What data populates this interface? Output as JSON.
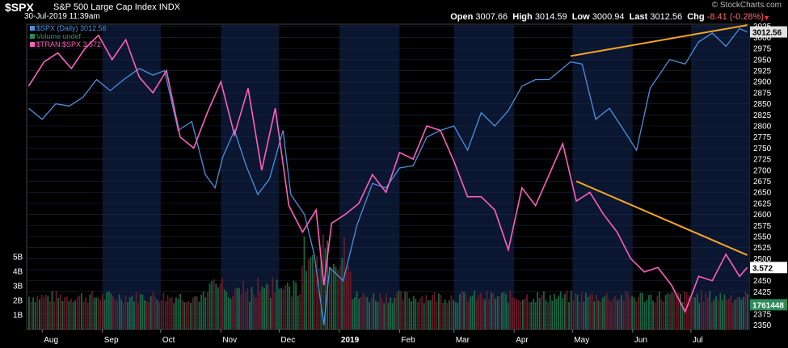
{
  "header": {
    "symbol": "$SPX",
    "name": "S&P 500 Large Cap Index",
    "exchange": "INDX",
    "date": "30-Jul-2019 11:39am",
    "brand": "© StockCharts.com",
    "open_label": "Open",
    "open": "3007.66",
    "high_label": "High",
    "high": "3014.59",
    "low_label": "Low",
    "low": "3000.94",
    "last_label": "Last",
    "last": "3012.56",
    "chg_label": "Chg",
    "chg": "-8.41 (-0.28%)",
    "chg_arrow": "▼"
  },
  "legend": [
    {
      "label": "$SPX (Daily) 3012.56",
      "color": "#4a90e2"
    },
    {
      "label": "Volume undef",
      "color": "#2e8b57"
    },
    {
      "label": "$TRAN:$SPX 3.572",
      "color": "#ff5fbf"
    }
  ],
  "chart_data": {
    "type": "line",
    "x_ticks": [
      "Aug",
      "Sep",
      "Oct",
      "Nov",
      "Dec",
      "2019",
      "Feb",
      "Mar",
      "Apr",
      "May",
      "Jun",
      "Jul"
    ],
    "y_right_ticks": [
      2350,
      2375,
      2400,
      2425,
      2450,
      2475,
      2500,
      2525,
      2550,
      2575,
      2600,
      2625,
      2650,
      2675,
      2700,
      2725,
      2750,
      2775,
      2800,
      2825,
      2850,
      2875,
      2900,
      2925,
      2950,
      2975,
      3000,
      3025
    ],
    "y_right_range": [
      2340,
      3030
    ],
    "volume_ticks": [
      "1B",
      "2B",
      "3B",
      "4B",
      "5B"
    ],
    "volume_range": [
      0,
      6
    ],
    "spx_last_label": "3012.56",
    "ratio_last_label": "3.572",
    "volume_last_label": "1761448",
    "series": [
      {
        "name": "$SPX (Daily)",
        "color": "#4a90e2",
        "x": [
          "2018-07-25",
          "2018-08-01",
          "2018-08-08",
          "2018-08-15",
          "2018-08-22",
          "2018-08-29",
          "2018-09-05",
          "2018-09-12",
          "2018-09-20",
          "2018-09-27",
          "2018-10-03",
          "2018-10-10",
          "2018-10-17",
          "2018-10-24",
          "2018-10-29",
          "2018-11-02",
          "2018-11-08",
          "2018-11-14",
          "2018-11-20",
          "2018-11-26",
          "2018-12-03",
          "2018-12-07",
          "2018-12-14",
          "2018-12-19",
          "2018-12-24",
          "2018-12-27",
          "2019-01-03",
          "2019-01-10",
          "2019-01-18",
          "2019-01-25",
          "2019-02-01",
          "2019-02-08",
          "2019-02-15",
          "2019-02-22",
          "2019-03-01",
          "2019-03-08",
          "2019-03-15",
          "2019-03-22",
          "2019-03-29",
          "2019-04-05",
          "2019-04-12",
          "2019-04-19",
          "2019-04-30",
          "2019-05-06",
          "2019-05-13",
          "2019-05-20",
          "2019-05-29",
          "2019-06-03",
          "2019-06-10",
          "2019-06-20",
          "2019-06-28",
          "2019-07-05",
          "2019-07-12",
          "2019-07-19",
          "2019-07-26",
          "2019-07-30"
        ],
        "y": [
          2840,
          2815,
          2850,
          2845,
          2865,
          2905,
          2880,
          2905,
          2930,
          2915,
          2925,
          2790,
          2810,
          2690,
          2660,
          2730,
          2790,
          2710,
          2645,
          2680,
          2790,
          2645,
          2600,
          2510,
          2350,
          2480,
          2450,
          2575,
          2670,
          2660,
          2705,
          2710,
          2775,
          2790,
          2800,
          2745,
          2830,
          2800,
          2835,
          2890,
          2905,
          2905,
          2945,
          2940,
          2815,
          2840,
          2780,
          2745,
          2885,
          2950,
          2940,
          2990,
          3010,
          2980,
          3020,
          3012.56
        ]
      },
      {
        "name": "$TRAN:$SPX",
        "color": "#ff5fbf",
        "x": [
          "2018-07-25",
          "2018-08-02",
          "2018-08-09",
          "2018-08-16",
          "2018-08-23",
          "2018-08-30",
          "2018-09-06",
          "2018-09-13",
          "2018-09-20",
          "2018-09-27",
          "2018-10-04",
          "2018-10-11",
          "2018-10-18",
          "2018-10-25",
          "2018-11-01",
          "2018-11-08",
          "2018-11-15",
          "2018-11-22",
          "2018-11-29",
          "2018-12-06",
          "2018-12-13",
          "2018-12-20",
          "2018-12-24",
          "2018-12-28",
          "2019-01-04",
          "2019-01-11",
          "2019-01-18",
          "2019-01-25",
          "2019-02-01",
          "2019-02-08",
          "2019-02-15",
          "2019-02-22",
          "2019-03-01",
          "2019-03-08",
          "2019-03-15",
          "2019-03-22",
          "2019-03-29",
          "2019-04-05",
          "2019-04-12",
          "2019-04-19",
          "2019-04-26",
          "2019-05-03",
          "2019-05-10",
          "2019-05-17",
          "2019-05-24",
          "2019-05-31",
          "2019-06-07",
          "2019-06-14",
          "2019-06-21",
          "2019-06-28",
          "2019-07-05",
          "2019-07-12",
          "2019-07-19",
          "2019-07-26",
          "2019-07-30"
        ],
        "y": [
          2890,
          2945,
          2965,
          2930,
          2975,
          3005,
          2950,
          2995,
          2910,
          2875,
          2925,
          2775,
          2750,
          2830,
          2900,
          2780,
          2885,
          2700,
          2840,
          2620,
          2560,
          2610,
          2440,
          2580,
          2600,
          2625,
          2690,
          2650,
          2740,
          2725,
          2800,
          2790,
          2720,
          2640,
          2640,
          2610,
          2520,
          2660,
          2620,
          2690,
          2760,
          2630,
          2650,
          2600,
          2560,
          2500,
          2470,
          2480,
          2440,
          2380,
          2460,
          2450,
          2510,
          2460,
          2480
        ]
      }
    ],
    "trendlines": [
      {
        "color": "#f5a623",
        "x": [
          "2019-04-30",
          "2019-07-30"
        ],
        "y": [
          2958,
          3028
        ]
      },
      {
        "color": "#f5a623",
        "x": [
          "2019-05-03",
          "2019-07-30"
        ],
        "y": [
          2675,
          2508
        ]
      }
    ],
    "grid": true
  }
}
